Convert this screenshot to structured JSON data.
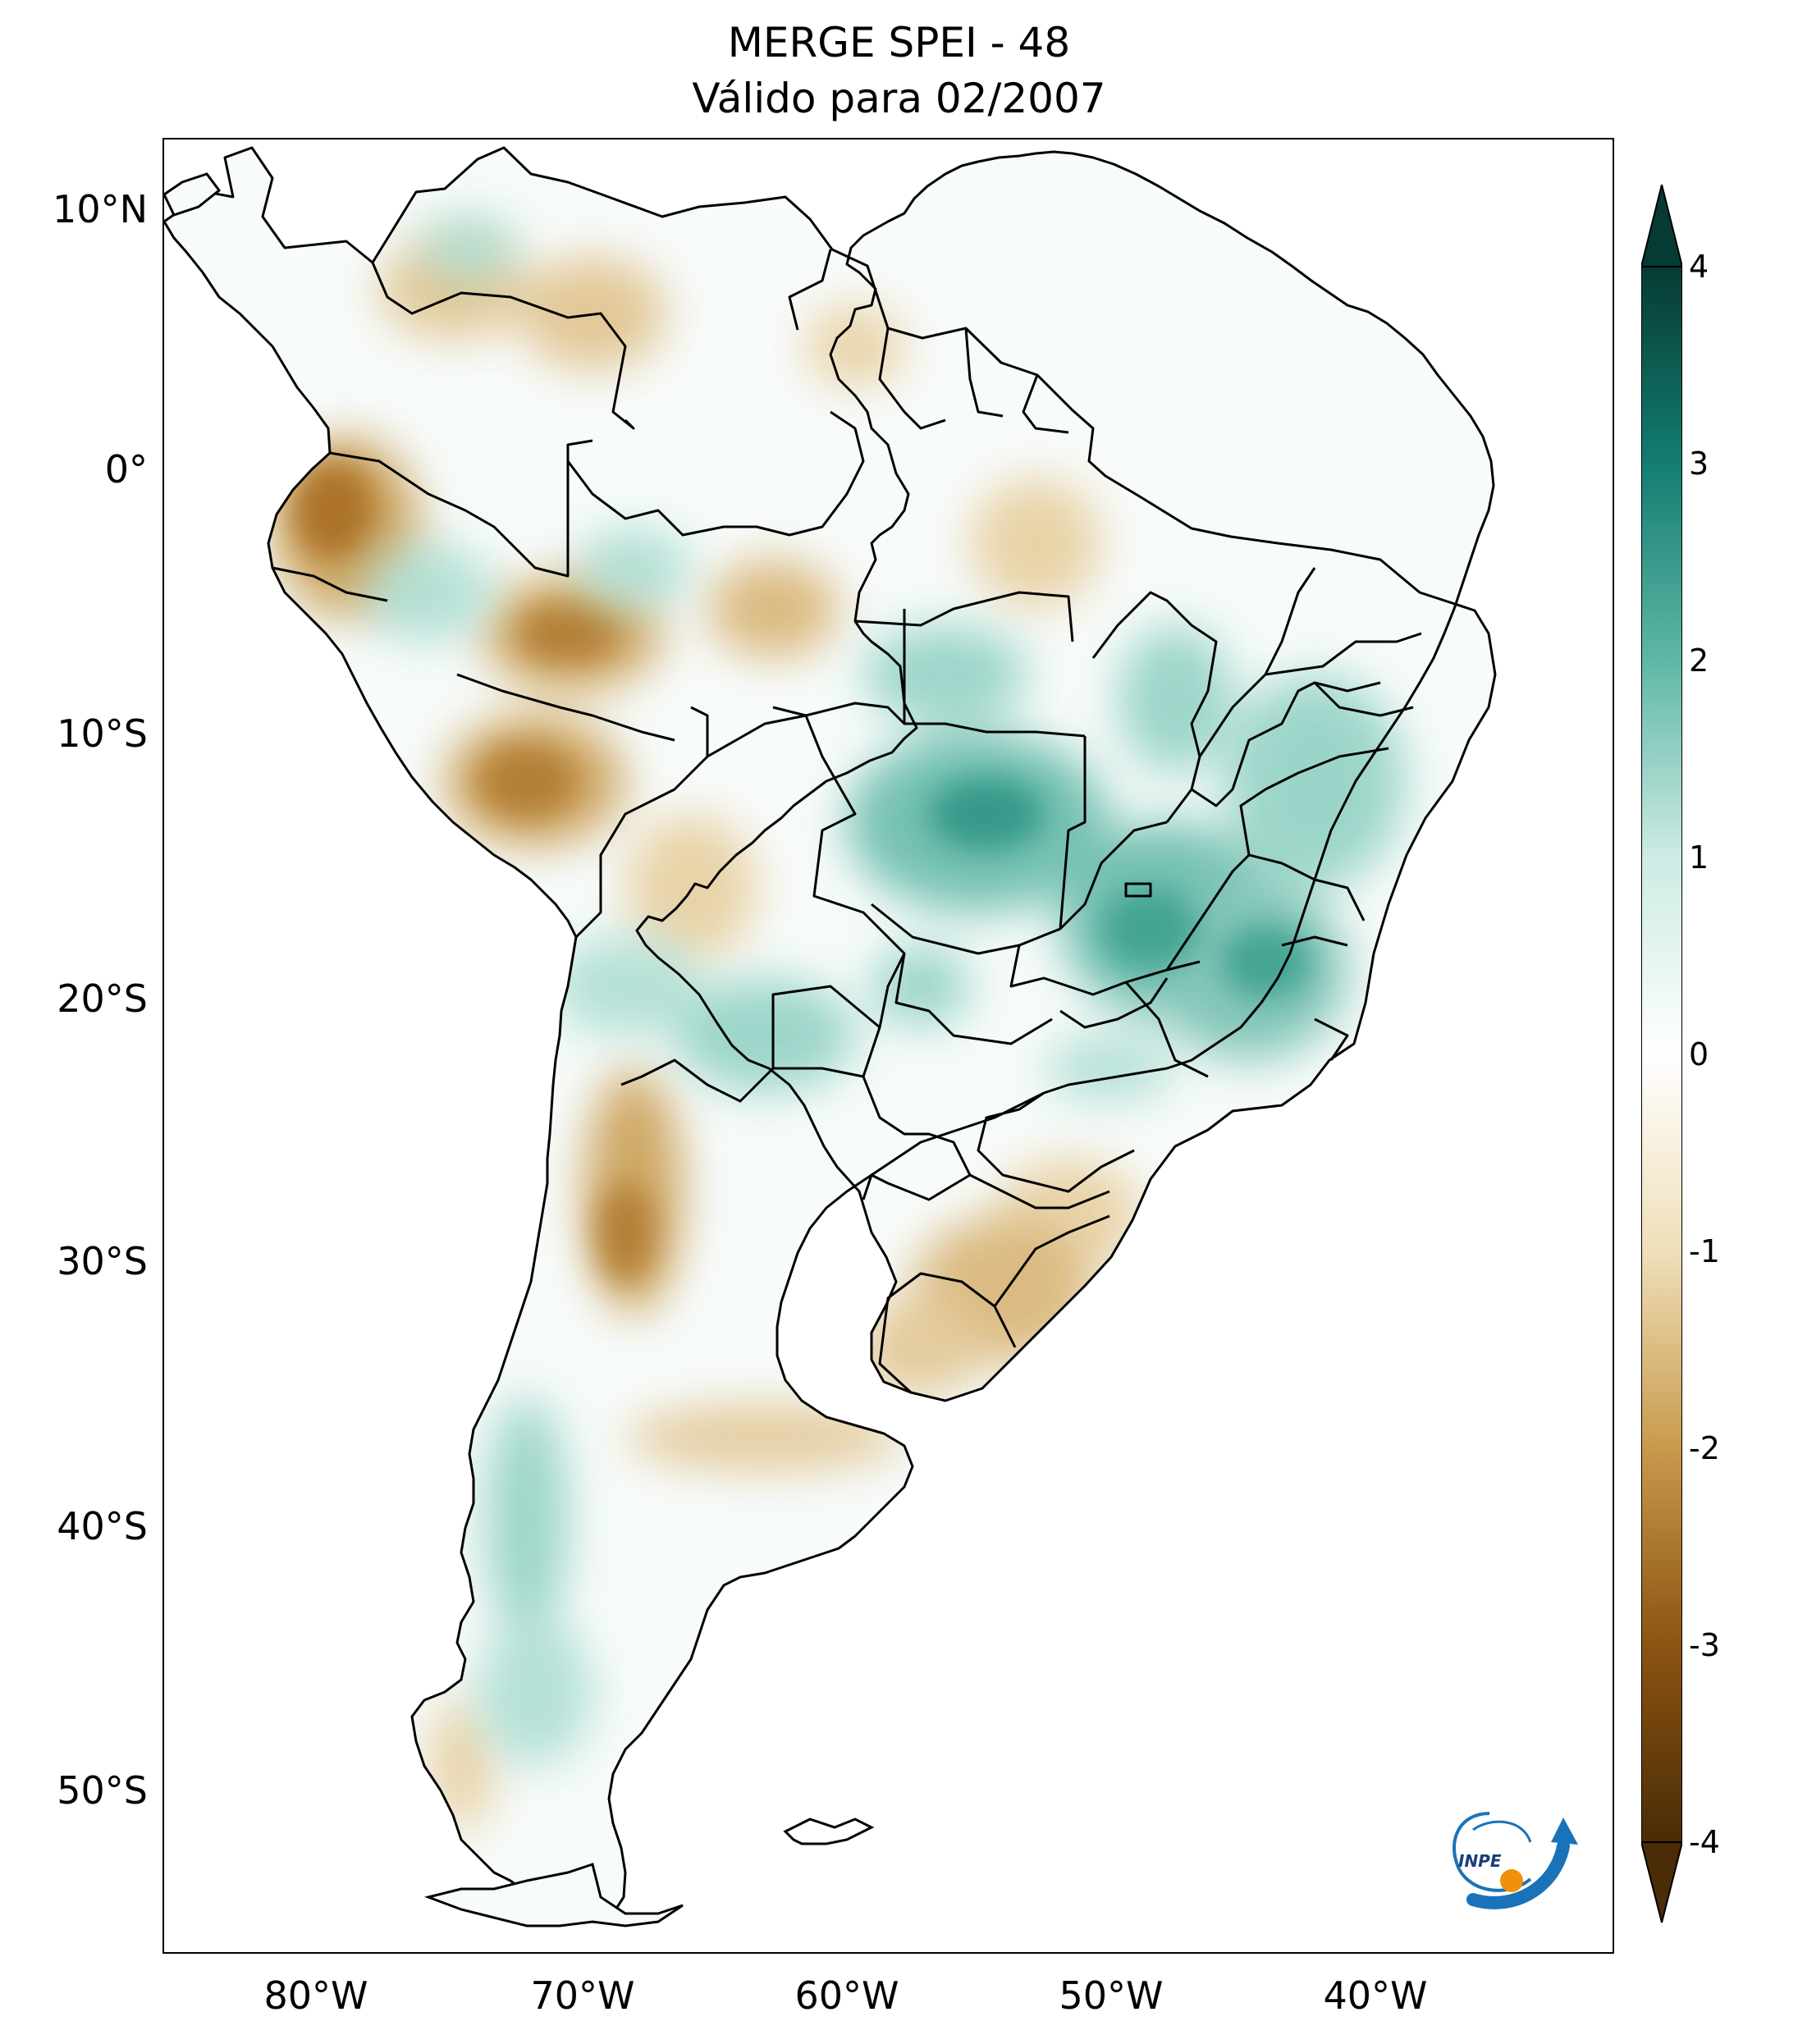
{
  "title": {
    "line1": "MERGE   SPEI - 48",
    "line2": "Válido para 02/2007"
  },
  "axes": {
    "lat_labels": [
      "10°N",
      "0°",
      "10°S",
      "20°S",
      "30°S",
      "40°S",
      "50°S"
    ],
    "lon_labels": [
      "80°W",
      "70°W",
      "60°W",
      "50°W",
      "40°W"
    ]
  },
  "colorbar": {
    "ticks": [
      "4",
      "3",
      "2",
      "1",
      "0",
      "-1",
      "-2",
      "-3",
      "-4"
    ],
    "range": [
      -4,
      4
    ],
    "extend": "both",
    "colors": {
      "min": "#4a2c06",
      "dry_strong": "#8c5412",
      "dry_mid": "#c89a4c",
      "dry_light": "#efdfb9",
      "neutral": "#ffffff",
      "wet_light": "#cdebe4",
      "wet_mid": "#5fb7a6",
      "wet_strong": "#137d70",
      "max": "#063b33"
    }
  },
  "logo": {
    "text": "INPE"
  },
  "colors": {
    "border": "#000000",
    "ocean": "#ffffff",
    "dry_patch": "#dfbf86",
    "wet_patch": "#8ccfc1"
  }
}
